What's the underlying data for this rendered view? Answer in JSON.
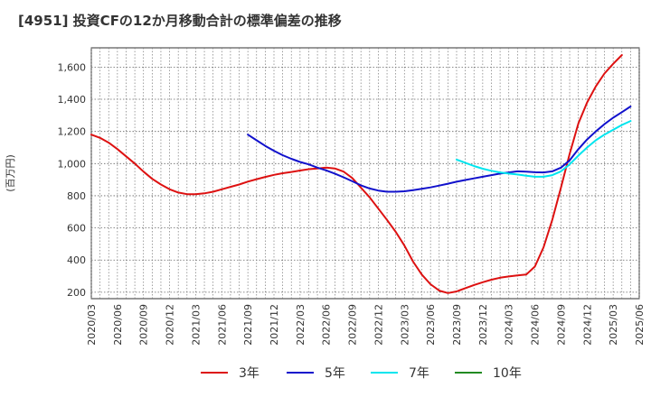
{
  "chart_data": {
    "type": "line",
    "title": "[4951]  投資CFの12か月移動合計の標準偏差の推移",
    "ylabel": "(百万円)",
    "xlabel": "",
    "ylim": [
      160,
      1720
    ],
    "yticks": [
      200,
      400,
      600,
      800,
      1000,
      1200,
      1400,
      1600
    ],
    "ytick_labels": [
      "200",
      "400",
      "600",
      "800",
      "1,000",
      "1,200",
      "1,400",
      "1,600"
    ],
    "xticks": [
      "2020/03",
      "2020/06",
      "2020/09",
      "2020/12",
      "2021/03",
      "2021/06",
      "2021/09",
      "2021/12",
      "2022/03",
      "2022/06",
      "2022/09",
      "2022/12",
      "2023/03",
      "2023/06",
      "2023/09",
      "2023/12",
      "2024/03",
      "2024/06",
      "2024/09",
      "2024/12",
      "2025/03",
      "2025/06"
    ],
    "grid": true,
    "legend_position": "bottom",
    "series": [
      {
        "name": "3年",
        "color": "#dd1111",
        "points": [
          [
            "2020/03",
            1180
          ],
          [
            "2020/04",
            1160
          ],
          [
            "2020/05",
            1130
          ],
          [
            "2020/06",
            1090
          ],
          [
            "2020/07",
            1045
          ],
          [
            "2020/08",
            1000
          ],
          [
            "2020/09",
            950
          ],
          [
            "2020/10",
            905
          ],
          [
            "2020/11",
            870
          ],
          [
            "2020/12",
            840
          ],
          [
            "2021/01",
            820
          ],
          [
            "2021/02",
            810
          ],
          [
            "2021/03",
            810
          ],
          [
            "2021/04",
            815
          ],
          [
            "2021/05",
            825
          ],
          [
            "2021/06",
            840
          ],
          [
            "2021/07",
            855
          ],
          [
            "2021/08",
            870
          ],
          [
            "2021/09",
            888
          ],
          [
            "2021/10",
            903
          ],
          [
            "2021/11",
            917
          ],
          [
            "2021/12",
            930
          ],
          [
            "2022/01",
            940
          ],
          [
            "2022/02",
            948
          ],
          [
            "2022/03",
            957
          ],
          [
            "2022/04",
            965
          ],
          [
            "2022/05",
            970
          ],
          [
            "2022/06",
            975
          ],
          [
            "2022/07",
            970
          ],
          [
            "2022/08",
            950
          ],
          [
            "2022/09",
            910
          ],
          [
            "2022/10",
            850
          ],
          [
            "2022/11",
            790
          ],
          [
            "2022/12",
            720
          ],
          [
            "2023/01",
            650
          ],
          [
            "2023/02",
            575
          ],
          [
            "2023/03",
            490
          ],
          [
            "2023/04",
            390
          ],
          [
            "2023/05",
            310
          ],
          [
            "2023/06",
            250
          ],
          [
            "2023/07",
            210
          ],
          [
            "2023/08",
            195
          ],
          [
            "2023/09",
            205
          ],
          [
            "2023/10",
            225
          ],
          [
            "2023/11",
            245
          ],
          [
            "2023/12",
            262
          ],
          [
            "2024/01",
            278
          ],
          [
            "2024/02",
            290
          ],
          [
            "2024/03",
            298
          ],
          [
            "2024/04",
            305
          ],
          [
            "2024/05",
            310
          ],
          [
            "2024/06",
            360
          ],
          [
            "2024/07",
            480
          ],
          [
            "2024/08",
            650
          ],
          [
            "2024/09",
            850
          ],
          [
            "2024/10",
            1060
          ],
          [
            "2024/11",
            1250
          ],
          [
            "2024/12",
            1380
          ],
          [
            "2025/01",
            1480
          ],
          [
            "2025/02",
            1560
          ],
          [
            "2025/03",
            1620
          ],
          [
            "2025/04",
            1675
          ]
        ]
      },
      {
        "name": "5年",
        "color": "#1111cc",
        "points": [
          [
            "2021/09",
            1180
          ],
          [
            "2021/10",
            1145
          ],
          [
            "2021/11",
            1110
          ],
          [
            "2021/12",
            1080
          ],
          [
            "2022/01",
            1052
          ],
          [
            "2022/02",
            1030
          ],
          [
            "2022/03",
            1010
          ],
          [
            "2022/04",
            995
          ],
          [
            "2022/05",
            975
          ],
          [
            "2022/06",
            958
          ],
          [
            "2022/07",
            938
          ],
          [
            "2022/08",
            915
          ],
          [
            "2022/09",
            890
          ],
          [
            "2022/10",
            865
          ],
          [
            "2022/11",
            845
          ],
          [
            "2022/12",
            832
          ],
          [
            "2023/01",
            825
          ],
          [
            "2023/02",
            825
          ],
          [
            "2023/03",
            828
          ],
          [
            "2023/04",
            835
          ],
          [
            "2023/05",
            843
          ],
          [
            "2023/06",
            852
          ],
          [
            "2023/07",
            863
          ],
          [
            "2023/08",
            875
          ],
          [
            "2023/09",
            887
          ],
          [
            "2023/10",
            898
          ],
          [
            "2023/11",
            908
          ],
          [
            "2023/12",
            918
          ],
          [
            "2024/01",
            928
          ],
          [
            "2024/02",
            938
          ],
          [
            "2024/03",
            945
          ],
          [
            "2024/04",
            952
          ],
          [
            "2024/05",
            950
          ],
          [
            "2024/06",
            946
          ],
          [
            "2024/07",
            945
          ],
          [
            "2024/08",
            952
          ],
          [
            "2024/09",
            975
          ],
          [
            "2024/10",
            1020
          ],
          [
            "2024/11",
            1090
          ],
          [
            "2024/12",
            1150
          ],
          [
            "2025/01",
            1200
          ],
          [
            "2025/02",
            1245
          ],
          [
            "2025/03",
            1285
          ],
          [
            "2025/04",
            1320
          ],
          [
            "2025/05",
            1355
          ]
        ]
      },
      {
        "name": "7年",
        "color": "#00e5ee",
        "points": [
          [
            "2023/09",
            1025
          ],
          [
            "2023/10",
            1005
          ],
          [
            "2023/11",
            985
          ],
          [
            "2023/12",
            968
          ],
          [
            "2024/01",
            955
          ],
          [
            "2024/02",
            945
          ],
          [
            "2024/03",
            938
          ],
          [
            "2024/04",
            932
          ],
          [
            "2024/05",
            925
          ],
          [
            "2024/06",
            918
          ],
          [
            "2024/07",
            918
          ],
          [
            "2024/08",
            928
          ],
          [
            "2024/09",
            952
          ],
          [
            "2024/10",
            995
          ],
          [
            "2024/11",
            1050
          ],
          [
            "2024/12",
            1100
          ],
          [
            "2025/01",
            1145
          ],
          [
            "2025/02",
            1180
          ],
          [
            "2025/03",
            1210
          ],
          [
            "2025/04",
            1240
          ],
          [
            "2025/05",
            1265
          ]
        ]
      },
      {
        "name": "10年",
        "color": "#228b22",
        "points": []
      }
    ]
  }
}
